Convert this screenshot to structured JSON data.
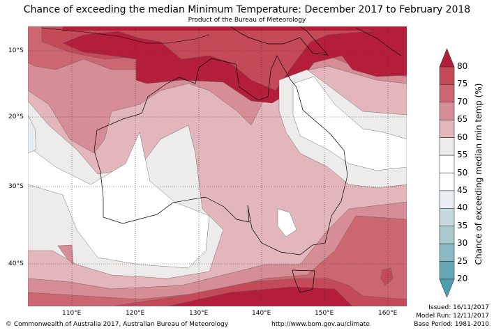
{
  "title": "Chance of exceeding the median Minimum Temperature: December 2017 to February 2018",
  "subtitle": "Product of the Bureau of Meteorology",
  "map": {
    "lon_labels": [
      "110°E",
      "120°E",
      "130°E",
      "140°E",
      "150°E",
      "160°E"
    ],
    "lat_labels": [
      "10°S",
      "20°S",
      "30°S",
      "40°S"
    ]
  },
  "colorbar": {
    "title": "Chance of exceeding median min temp (%)",
    "ticks": [
      "80",
      "75",
      "70",
      "65",
      "60",
      "55",
      "50",
      "45",
      "40",
      "35",
      "30",
      "25",
      "20"
    ],
    "colors": [
      "#b41e3b",
      "#c44a58",
      "#cc6671",
      "#d68d95",
      "#e2b6bb",
      "#eeeceb",
      "#ffffff",
      "#ffffff",
      "#e8eef1",
      "#c6d9dc",
      "#a9c8cd",
      "#8ab9c4",
      "#68a8b6",
      "#4b9fae"
    ]
  },
  "footer": {
    "copyright": "© Commonwealth of Australia 2017, Australian Bureau of Meteorology",
    "url": "http://www.bom.gov.au/climate",
    "issued": "Issued: 16/11/2017",
    "model_run": "Model Run: 12/11/2017",
    "base_period": "Base Period: 1981-2010"
  }
}
